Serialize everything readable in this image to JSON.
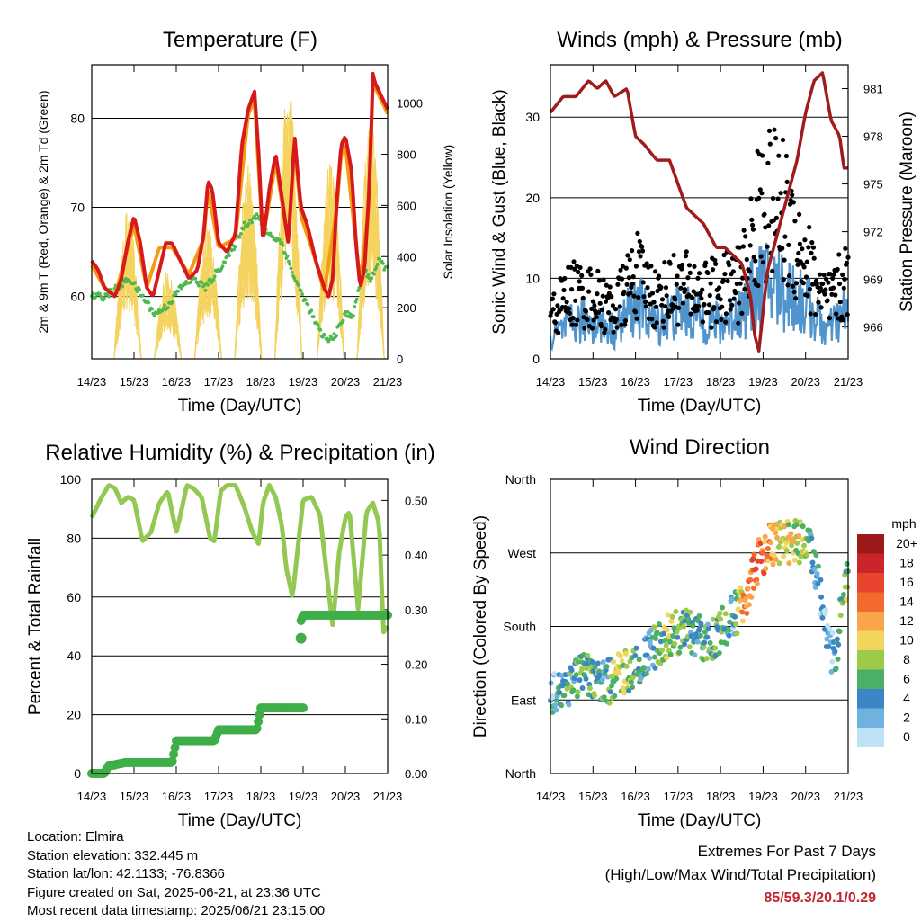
{
  "colors": {
    "t2m": "#d7191c",
    "t9m": "#f39c12",
    "td": "#4fb84f",
    "insolation": "#f4d35e",
    "wind": "#4f94cd",
    "gust": "#000000",
    "pressure": "#a01c1c",
    "rh": "#93c852",
    "precip": "#3fae49"
  },
  "x_ticks": [
    "14/23",
    "15/23",
    "16/23",
    "17/23",
    "18/23",
    "19/23",
    "20/23",
    "21/23"
  ],
  "x_axis_label": "Time (Day/UTC)",
  "chart_data": [
    {
      "id": "temperature",
      "type": "line",
      "title": "Temperature (F)",
      "xlabel": "Time (Day/UTC)",
      "ylabel": "2m & 9m T (Red, Orange) & 2m Td (Green)",
      "y2label": "Solar Insolation (Yellow)",
      "ylim": [
        53,
        86
      ],
      "y_ticks": [
        60,
        70,
        80
      ],
      "y2lim": [
        0,
        1150
      ],
      "y2_ticks": [
        0,
        200,
        400,
        600,
        800,
        1000
      ],
      "series": [
        {
          "key": "t2m",
          "axis": "left",
          "x": [
            0,
            0.15,
            0.3,
            0.55,
            0.7,
            0.85,
            1.0,
            1.15,
            1.3,
            1.45,
            1.6,
            1.75,
            1.9,
            2.1,
            2.3,
            2.5,
            2.65,
            2.75,
            2.85,
            3.0,
            3.2,
            3.4,
            3.55,
            3.7,
            3.85,
            3.95,
            4.05,
            4.2,
            4.35,
            4.5,
            4.65,
            4.8,
            4.85,
            4.95,
            5.1,
            5.3,
            5.5,
            5.6,
            5.7,
            5.8,
            5.9,
            6.0,
            6.15,
            6.25,
            6.35,
            6.45,
            6.55,
            6.6,
            6.65,
            6.7,
            6.8,
            6.9,
            7.0
          ],
          "y": [
            64,
            63,
            61,
            60,
            62,
            66,
            69,
            66,
            61,
            60,
            63,
            66,
            66,
            64,
            62,
            63,
            67,
            73,
            72,
            66,
            65,
            67,
            77,
            81,
            83,
            76,
            66,
            72,
            76,
            71,
            66,
            78,
            75,
            70,
            68,
            64,
            61,
            60,
            62,
            71,
            77,
            78,
            74,
            66,
            61,
            63,
            71,
            77,
            85,
            84,
            83,
            82,
            81
          ]
        },
        {
          "key": "t9m",
          "axis": "left",
          "x": [
            0,
            0.3,
            0.55,
            0.85,
            1.0,
            1.3,
            1.6,
            1.9,
            2.3,
            2.65,
            2.75,
            3.0,
            3.4,
            3.7,
            3.85,
            4.05,
            4.35,
            4.65,
            4.8,
            4.95,
            5.3,
            5.5,
            5.8,
            5.9,
            6.0,
            6.25,
            6.35,
            6.55,
            6.65,
            6.8,
            7.0
          ],
          "y": [
            63.5,
            61,
            60,
            65.5,
            68,
            61,
            65.5,
            65.5,
            62.5,
            66.5,
            72,
            65.5,
            66.5,
            80.5,
            82,
            66.5,
            75,
            66,
            77,
            69,
            64,
            60.5,
            70,
            76,
            77,
            66,
            61.5,
            70,
            84,
            82.5,
            80.5
          ]
        },
        {
          "key": "td",
          "axis": "left",
          "x": [
            0,
            0.3,
            0.6,
            0.9,
            1.2,
            1.5,
            1.8,
            2.1,
            2.4,
            2.7,
            3.0,
            3.3,
            3.6,
            3.9,
            4.2,
            4.5,
            4.8,
            5.0,
            5.2,
            5.4,
            5.6,
            5.8,
            6.0,
            6.2,
            6.4,
            6.6,
            6.8,
            7.0
          ],
          "y": [
            60,
            60,
            61,
            62,
            60,
            58,
            59,
            61,
            62,
            61,
            63,
            65,
            68,
            69,
            67,
            66,
            62,
            60,
            58,
            56,
            55,
            56,
            58,
            58,
            63,
            62,
            64,
            63
          ]
        },
        {
          "key": "insolation",
          "axis": "right",
          "peaks": [
            0.85,
            1.8,
            2.75,
            3.7,
            4.65,
            5.65,
            6.6
          ],
          "peak_values": [
            580,
            350,
            520,
            760,
            1080,
            780,
            960
          ]
        }
      ]
    },
    {
      "id": "winds",
      "type": "line",
      "title": "Winds (mph) & Pressure (mb)",
      "xlabel": "Time (Day/UTC)",
      "ylabel": "Sonic Wind & Gust (Blue, Black)",
      "y2label": "Station Pressure (Maroon)",
      "ylim": [
        0,
        36.5
      ],
      "y_ticks": [
        0,
        10,
        20,
        30
      ],
      "y2lim": [
        964.0,
        982.5
      ],
      "y2_ticks": [
        966,
        969,
        972,
        975,
        978,
        981
      ],
      "series": [
        {
          "key": "pressure",
          "axis": "right",
          "x": [
            0,
            0.3,
            0.6,
            0.9,
            1.1,
            1.3,
            1.5,
            1.8,
            2.0,
            2.2,
            2.5,
            2.8,
            3.0,
            3.2,
            3.4,
            3.6,
            3.9,
            4.1,
            4.3,
            4.5,
            4.7,
            4.8,
            4.9,
            5.0,
            5.1,
            5.2,
            5.4,
            5.6,
            5.8,
            6.0,
            6.2,
            6.4,
            6.6,
            6.8,
            6.9,
            7.0
          ],
          "y": [
            979.5,
            980.5,
            980.5,
            981.5,
            981.0,
            981.5,
            980.5,
            981.0,
            978.0,
            977.5,
            976.5,
            976.5,
            975.0,
            973.5,
            973.0,
            972.5,
            971.0,
            971.0,
            970.5,
            970.0,
            968.0,
            965.5,
            964.5,
            967.0,
            969.5,
            970.5,
            972.5,
            974.5,
            976.5,
            979.5,
            981.5,
            982.0,
            979.0,
            978.0,
            976.0,
            976.0
          ]
        },
        {
          "key": "wind",
          "axis": "left",
          "x": [
            0,
            0.5,
            1.0,
            1.5,
            2.0,
            2.5,
            3.0,
            3.5,
            4.0,
            4.5,
            5.0,
            5.5,
            6.0,
            6.5,
            7.0
          ],
          "y": [
            3,
            5,
            6,
            4,
            8,
            5,
            7,
            6,
            5,
            7,
            11,
            10,
            8,
            4,
            7
          ]
        },
        {
          "key": "gust",
          "axis": "left",
          "x": [
            0,
            0.5,
            1.0,
            1.5,
            2.0,
            2.5,
            3.0,
            3.5,
            4.0,
            4.5,
            5.0,
            5.5,
            6.0,
            6.5,
            7.0
          ],
          "y": [
            7,
            11,
            10,
            8,
            14,
            10,
            12,
            11,
            11,
            13,
            26,
            24,
            16,
            9,
            13
          ]
        }
      ]
    },
    {
      "id": "humidity",
      "type": "line",
      "title": "Relative Humidity (%) & Precipitation (in)",
      "xlabel": "Time (Day/UTC)",
      "ylabel": "Percent & Total Rainfall",
      "ylim": [
        0,
        100
      ],
      "y_ticks": [
        0,
        20,
        40,
        60,
        80,
        100
      ],
      "y2lim": [
        0,
        0.5385
      ],
      "y2_ticks": [
        0.0,
        0.1,
        0.2,
        0.3,
        0.4,
        0.5
      ],
      "series": [
        {
          "key": "rh",
          "axis": "left",
          "x": [
            0,
            0.2,
            0.4,
            0.55,
            0.7,
            0.85,
            1.0,
            1.2,
            1.4,
            1.6,
            1.8,
            2.0,
            2.1,
            2.25,
            2.4,
            2.6,
            2.8,
            2.9,
            3.05,
            3.2,
            3.4,
            3.6,
            3.8,
            3.95,
            4.05,
            4.2,
            4.35,
            4.5,
            4.6,
            4.75,
            4.9,
            5.0,
            5.2,
            5.4,
            5.55,
            5.7,
            5.85,
            6.0,
            6.1,
            6.3,
            6.5,
            6.65,
            6.8,
            6.9,
            7.0
          ],
          "y": [
            87,
            93,
            98,
            97,
            92,
            94,
            93,
            79,
            82,
            92,
            96,
            82,
            88,
            98,
            97,
            94,
            80,
            79,
            96,
            98,
            98,
            91,
            82,
            78,
            92,
            98,
            94,
            84,
            70,
            60,
            80,
            93,
            94,
            88,
            69,
            50,
            75,
            87,
            89,
            56,
            89,
            92,
            85,
            48,
            50
          ]
        },
        {
          "key": "rh_ticks_right",
          "values": []
        },
        {
          "key": "precip",
          "axis": "right",
          "x": [
            0,
            0.3,
            0.4,
            0.5,
            0.8,
            1.0,
            1.3,
            1.6,
            1.9,
            2.0,
            2.3,
            2.6,
            2.9,
            3.0,
            3.3,
            3.6,
            3.9,
            4.0,
            4.3,
            4.6,
            4.9,
            5.0
          ],
          "y": [
            0.0,
            0.0,
            0.015,
            0.015,
            0.02,
            0.02,
            0.02,
            0.02,
            0.02,
            0.06,
            0.06,
            0.06,
            0.06,
            0.08,
            0.08,
            0.08,
            0.08,
            0.12,
            0.12,
            0.12,
            0.12,
            0.12
          ]
        },
        {
          "key": "precip_later",
          "axis": "right",
          "x": [
            4.95,
            5.0,
            5.5,
            6.0,
            6.5,
            7.0
          ],
          "y": [
            0.28,
            0.29,
            0.29,
            0.29,
            0.29,
            0.29
          ]
        }
      ]
    },
    {
      "id": "wind_direction",
      "type": "scatter",
      "title": "Wind Direction",
      "xlabel": "Time (Day/UTC)",
      "ylabel": "Direction (Colored By Speed)",
      "y_ticks": [
        "North",
        "East",
        "South",
        "West",
        "North"
      ],
      "legend": {
        "title": "mph",
        "labels": [
          "20+",
          "18",
          "16",
          "14",
          "12",
          "10",
          "8",
          "6",
          "4",
          "2",
          "0"
        ],
        "colors": [
          "#9e1a1a",
          "#c9252b",
          "#e8432c",
          "#f26a2e",
          "#f9a64a",
          "#f2d55b",
          "#9ccb4a",
          "#4caf67",
          "#3b86c4",
          "#6fb2e0",
          "#bfe3f6"
        ]
      },
      "series": [
        {
          "key": "dir",
          "x": [
            0.1,
            0.4,
            0.7,
            1.0,
            1.3,
            1.6,
            1.9,
            2.2,
            2.5,
            2.8,
            3.1,
            3.4,
            3.7,
            4.0,
            4.3,
            4.6,
            4.9,
            5.2,
            5.5,
            5.8,
            6.1,
            6.4,
            6.7,
            6.9
          ],
          "y_deg": [
            100,
            110,
            120,
            115,
            110,
            120,
            130,
            140,
            155,
            170,
            175,
            170,
            160,
            175,
            190,
            220,
            260,
            280,
            285,
            285,
            280,
            200,
            130,
            230
          ],
          "speed": [
            3,
            5,
            6,
            6,
            4,
            8,
            7,
            4,
            5,
            8,
            6,
            4,
            5,
            7,
            3,
            14,
            14,
            12,
            10,
            9,
            6,
            2,
            3,
            7
          ]
        }
      ]
    }
  ],
  "info": {
    "location": "Location: Elmira",
    "elevation": "Station elevation: 332.445 m",
    "latlon": "Station lat/lon: 42.1133; -76.8366",
    "created": "Figure created on Sat, 2025-06-21, at 23:36 UTC",
    "recent": "Most recent data timestamp: 2025/06/21 23:15:00"
  },
  "extremes": {
    "title": "Extremes For Past 7 Days",
    "subtitle": "(High/Low/Max Wind/Total Precipitation)",
    "values": "85/59.3/20.1/0.29"
  }
}
